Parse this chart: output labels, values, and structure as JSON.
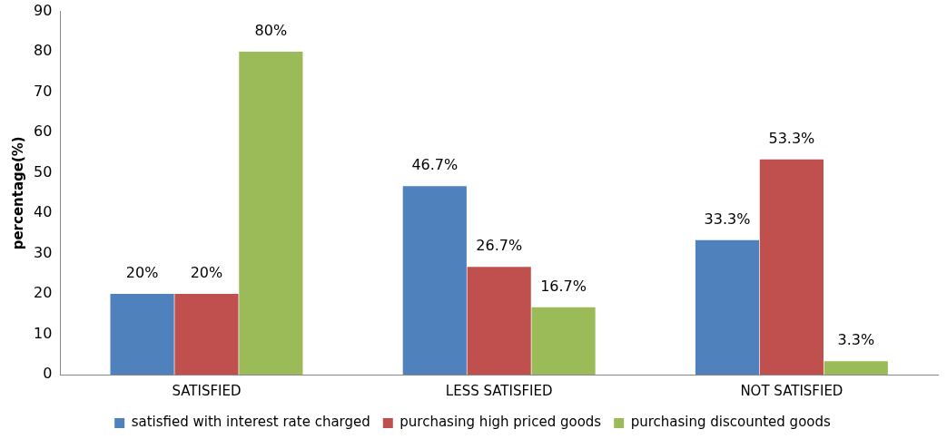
{
  "chart_data": {
    "type": "bar",
    "ylabel": "percentage(%)",
    "categories": [
      "SATISFIED",
      "LESS SATISFIED",
      "NOT SATISFIED"
    ],
    "series": [
      {
        "name": "satisfied with interest rate charged",
        "color": "#4f81bd",
        "values": [
          20,
          46.7,
          33.3
        ],
        "value_labels": [
          "20%",
          "46.7%",
          "33.3%"
        ]
      },
      {
        "name": "purchasing high priced goods",
        "color": "#c0504d",
        "values": [
          20,
          26.7,
          53.3
        ],
        "value_labels": [
          "20%",
          "26.7%",
          "53.3%"
        ]
      },
      {
        "name": "purchasing discounted goods",
        "color": "#9bbb59",
        "values": [
          80,
          16.7,
          3.3
        ],
        "value_labels": [
          "80%",
          "16.7%",
          "3.3%"
        ]
      }
    ],
    "ylim": [
      0,
      90
    ],
    "yticks": [
      0,
      10,
      20,
      30,
      40,
      50,
      60,
      70,
      80,
      90
    ],
    "grid": false,
    "legend": "bottom"
  }
}
